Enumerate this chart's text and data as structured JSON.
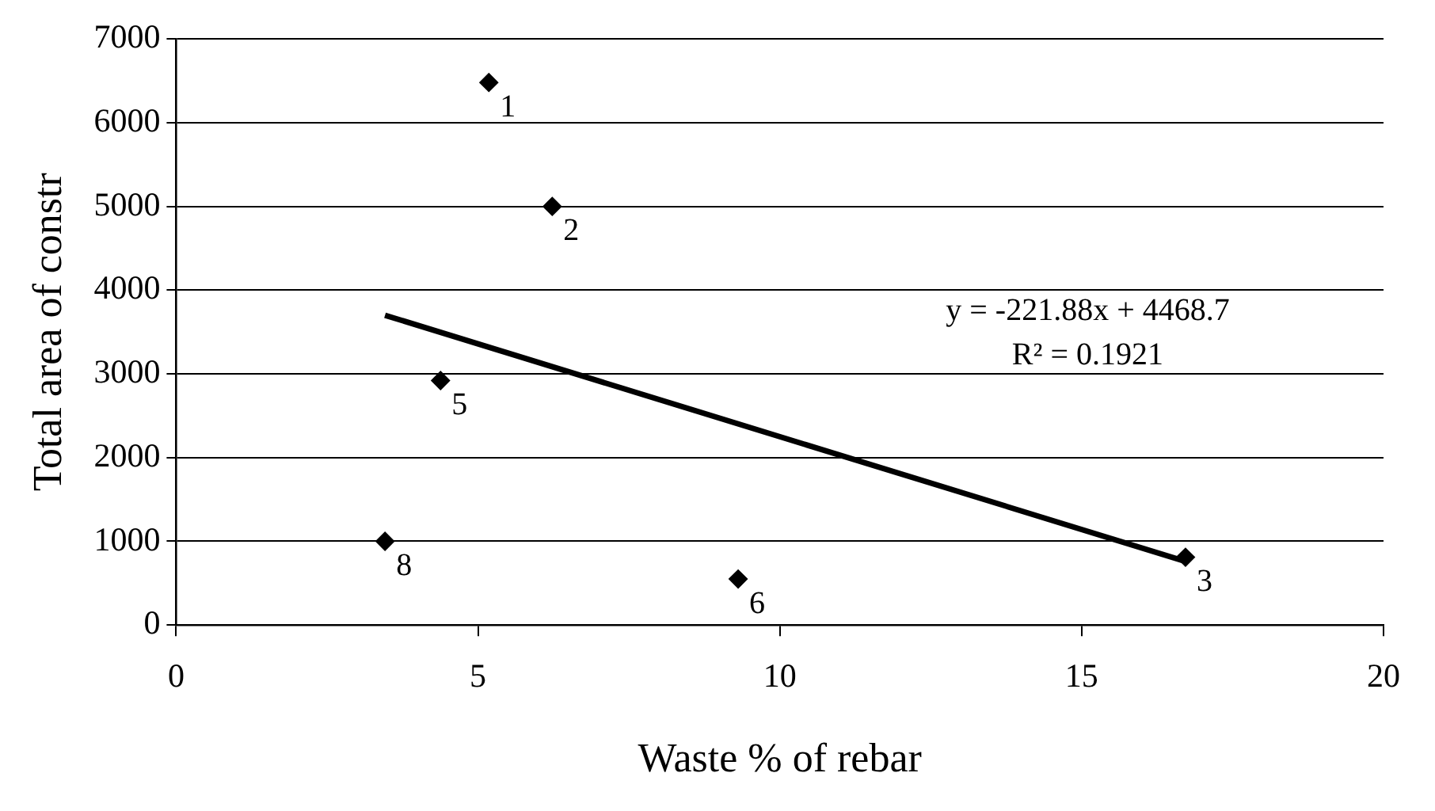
{
  "chart_data": {
    "type": "scatter",
    "xlabel": "Waste % of rebar",
    "ylabel": "Total area of constr",
    "xlim": [
      0,
      20
    ],
    "xticks": [
      0,
      5,
      10,
      15,
      20
    ],
    "ylim": [
      0,
      7000
    ],
    "yticks": [
      0,
      1000,
      2000,
      3000,
      4000,
      5000,
      6000,
      7000
    ],
    "grid": "y",
    "legend": false,
    "marker": "diamond",
    "series": [
      {
        "color": "#000000",
        "x": [
          5.18,
          6.23,
          16.72,
          4.38,
          9.31,
          3.46
        ],
        "values": [
          6480,
          5000,
          810,
          2920,
          550,
          1000
        ]
      },
      {
        "type": "line",
        "color": "#000000",
        "marker": "none",
        "line_style": "solid",
        "x": [
          3.46,
          16.72
        ],
        "values": [
          3700,
          760
        ]
      }
    ],
    "annotations": [
      {
        "text": "1",
        "x": 5.18,
        "y": 6480
      },
      {
        "text": "2",
        "x": 6.23,
        "y": 5000
      },
      {
        "text": "3",
        "x": 16.72,
        "y": 810
      },
      {
        "text": "5",
        "x": 4.38,
        "y": 2920
      },
      {
        "text": "6",
        "x": 9.31,
        "y": 550
      },
      {
        "text": "8",
        "x": 3.46,
        "y": 1000
      },
      "y = -221.88x + 4468.7",
      "R² = 0.1921"
    ]
  }
}
